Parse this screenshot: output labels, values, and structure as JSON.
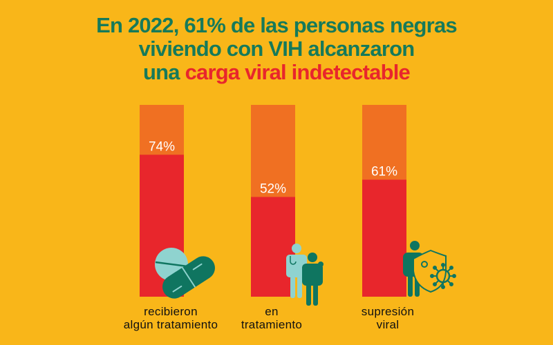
{
  "title": {
    "line1": "En 2022, 61% de las personas negras",
    "line2": "viviendo con VIH alcanzaron",
    "line3_prefix": "una ",
    "line3_highlight": "carga viral indetectable"
  },
  "colors": {
    "background": "#f9b619",
    "bar_track": "#f07022",
    "bar_fill": "#e8262c",
    "title": "#167a5a",
    "highlight": "#e8262c",
    "icon_dark": "#0f7560",
    "icon_light": "#8fd3cf"
  },
  "chart_data": {
    "type": "bar",
    "categories": [
      "recibieron algún tratamiento",
      "en tratamiento",
      "supresión viral"
    ],
    "category_lines": [
      [
        "recibieron",
        "algún tratamiento"
      ],
      [
        "en",
        "tratamiento"
      ],
      [
        "supresión",
        "viral"
      ]
    ],
    "values": [
      74,
      52,
      61
    ],
    "data_labels": [
      "74%",
      "52%",
      "61%"
    ],
    "ylim": [
      0,
      100
    ],
    "icons": [
      "pill-capsule-icon",
      "doctor-patient-icon",
      "person-shield-virus-icon"
    ],
    "grid": false
  }
}
